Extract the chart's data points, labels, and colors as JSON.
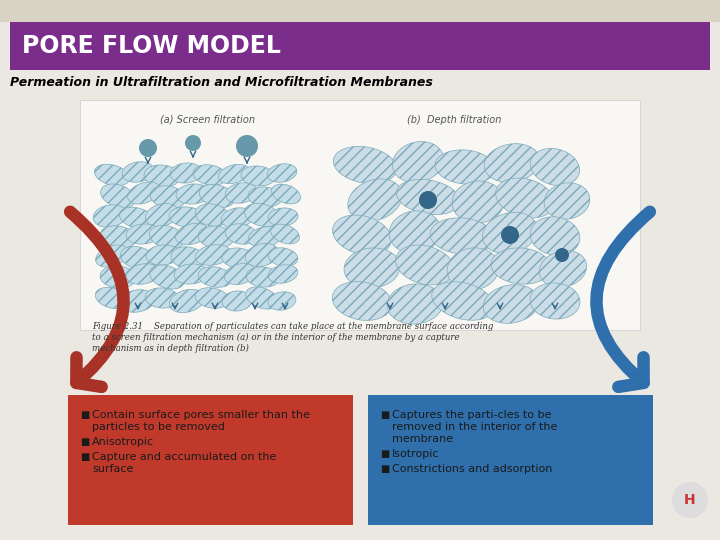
{
  "title": "PORE FLOW MODEL",
  "title_bg": "#7B2D8B",
  "title_color": "#FFFFFF",
  "subtitle": "Permeation in Ultrafiltration and Microfiltration Membranes",
  "subtitle_color": "#000000",
  "bg_color": "#EBE8E2",
  "left_box_color": "#C0392B",
  "right_box_color": "#2E6FAC",
  "text_color": "#1A1A1A",
  "arrow_left_color": "#A93226",
  "arrow_right_color": "#2E6FAC",
  "header_stripe_color": "#D9D3C4",
  "blob_color": "#C5DDE8",
  "blob_edge": "#7BAAB8",
  "particle_color_left": "#6699AA",
  "particle_color_right": "#336688",
  "caption_color": "#333333",
  "label_color": "#555555",
  "figure_caption_line1": "Figure 2.31    Separation of particulates can take place at the membrane surface according",
  "figure_caption_line2": "to a screen filtration mechanism (a) or in the interior of the membrane by a capture",
  "figure_caption_line3": "mechanism as in depth filtration (b)"
}
